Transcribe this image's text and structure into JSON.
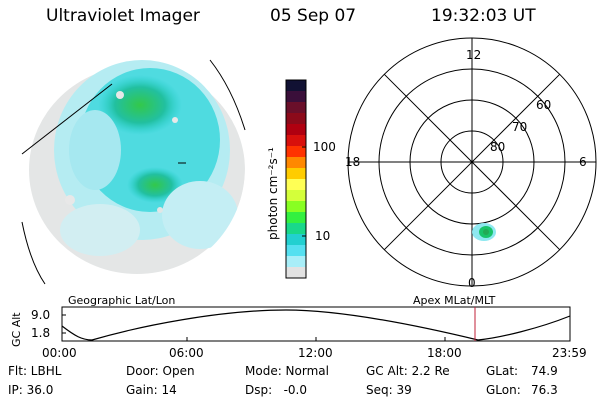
{
  "header": {
    "instrument": "Ultraviolet Imager",
    "date": "05 Sep 07",
    "time": "19:32:03 UT"
  },
  "left_panel": {
    "caption": "Geographic Lat/Lon"
  },
  "right_panel": {
    "caption": "Apex MLat/MLT",
    "mlt_labels": {
      "top": "12",
      "bottom": "0",
      "left": "18",
      "right": "6"
    },
    "lat_labels": [
      "60",
      "70",
      "80"
    ]
  },
  "colorbar": {
    "label": "photon cm⁻²s⁻¹",
    "tick_labels": [
      "100",
      "10"
    ],
    "colors": [
      "#111133",
      "#3a0f3a",
      "#6a0f2a",
      "#8c0a1a",
      "#b00010",
      "#d8100c",
      "#ff3300",
      "#ff8800",
      "#ffcc00",
      "#ffff55",
      "#d4ff3a",
      "#88ff22",
      "#33f040",
      "#19d88a",
      "#22d0d0",
      "#55e0f0",
      "#a8eef8",
      "#e2e2e2"
    ],
    "accent": "#22d0d0"
  },
  "altitude_strip": {
    "axis_label": "GC Alt",
    "y_ticks": [
      "9.0",
      "1.8"
    ],
    "x_ticks": [
      "00:00",
      "06:00",
      "12:00",
      "18:00",
      "23:59"
    ],
    "marker_color": "#c0203a"
  },
  "status": {
    "row1": {
      "filter": "Flt: LBHL",
      "door": "Door: Open",
      "mode": "Mode: Normal",
      "gc_alt": "GC Alt: 2.2 Re",
      "glat_label": "GLat:",
      "glat_value": "74.9"
    },
    "row2": {
      "ip": "IP: 36.0",
      "gain": "Gain: 14",
      "dsp": "Dsp:   -0.0",
      "seq": "Seq: 39",
      "glon_label": "GLon:",
      "glon_value": "76.3"
    }
  }
}
